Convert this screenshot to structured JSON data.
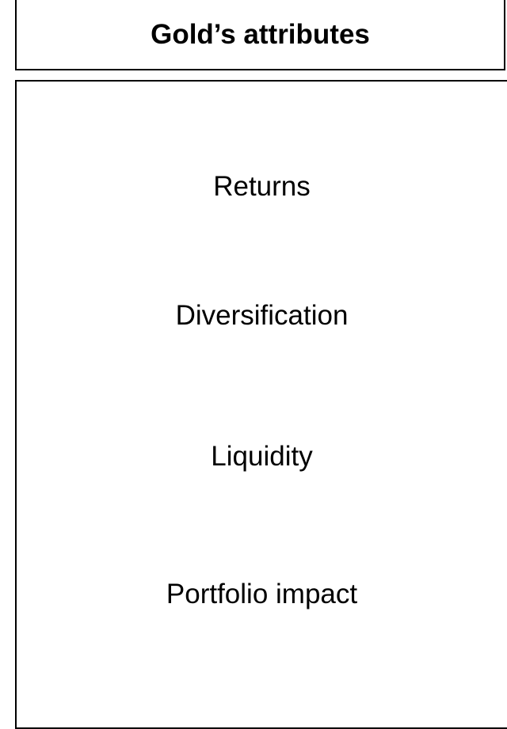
{
  "header": {
    "title": "Gold’s attributes"
  },
  "items": [
    "Returns",
    "Diversification",
    "Liquidity",
    "Portfolio impact"
  ]
}
